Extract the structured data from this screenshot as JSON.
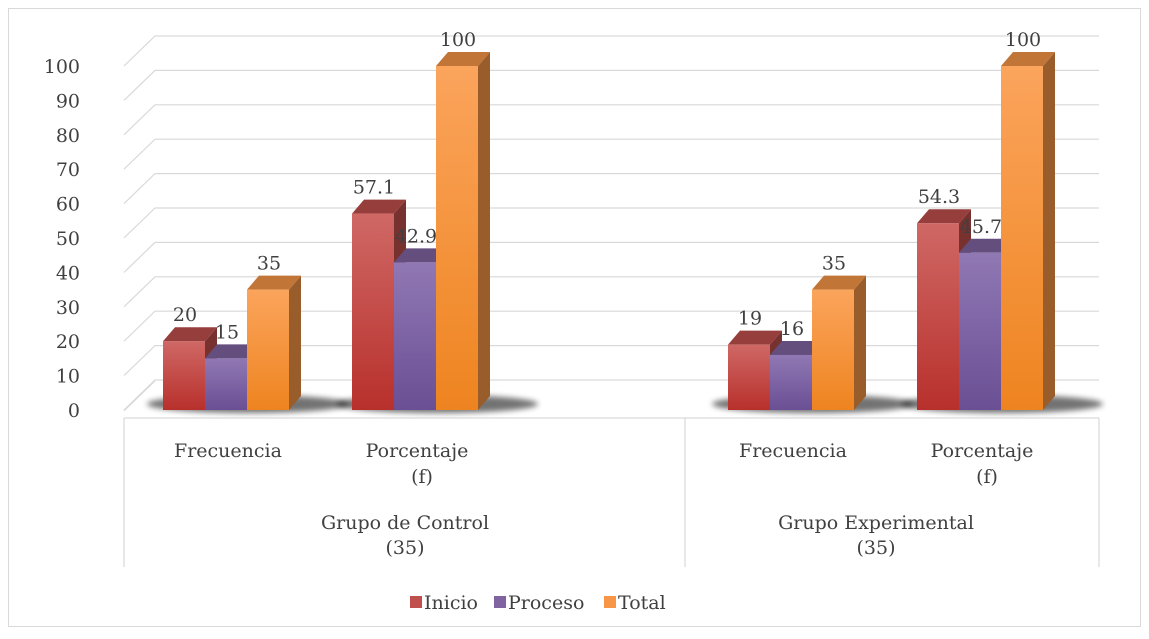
{
  "chart_data": {
    "type": "bar",
    "title": "",
    "xlabel": "",
    "ylabel": "",
    "ylim": [
      0,
      100
    ],
    "yticks": [
      "0",
      "10",
      "20",
      "30",
      "40",
      "50",
      "60",
      "70",
      "80",
      "90",
      "100"
    ],
    "grid": true,
    "legend_position": "bottom",
    "groups": [
      {
        "label_lines": [
          "Grupo de Control",
          "(35)"
        ],
        "categories": [
          {
            "label_lines": [
              "Frecuencia"
            ],
            "values": [
              20,
              15,
              35
            ],
            "labels": [
              "20",
              "15",
              "35"
            ]
          },
          {
            "label_lines": [
              "Porcentaje",
              "(f)"
            ],
            "values": [
              57.1,
              42.9,
              100
            ],
            "labels": [
              "57.1",
              "42.9",
              "100"
            ]
          }
        ]
      },
      {
        "label_lines": [
          "Grupo Experimental",
          "(35)"
        ],
        "categories": [
          {
            "label_lines": [
              "Frecuencia"
            ],
            "values": [
              19,
              16,
              35
            ],
            "labels": [
              "19",
              "16",
              "35"
            ]
          },
          {
            "label_lines": [
              "Porcentaje",
              "(f)"
            ],
            "values": [
              54.3,
              45.7,
              100
            ],
            "labels": [
              "54.3",
              "45.7",
              "100"
            ]
          }
        ]
      }
    ],
    "series": [
      {
        "name": "Inicio",
        "color": "#c0504d"
      },
      {
        "name": "Proceso",
        "color": "#8064a2"
      },
      {
        "name": "Total",
        "color": "#f79646"
      }
    ]
  }
}
